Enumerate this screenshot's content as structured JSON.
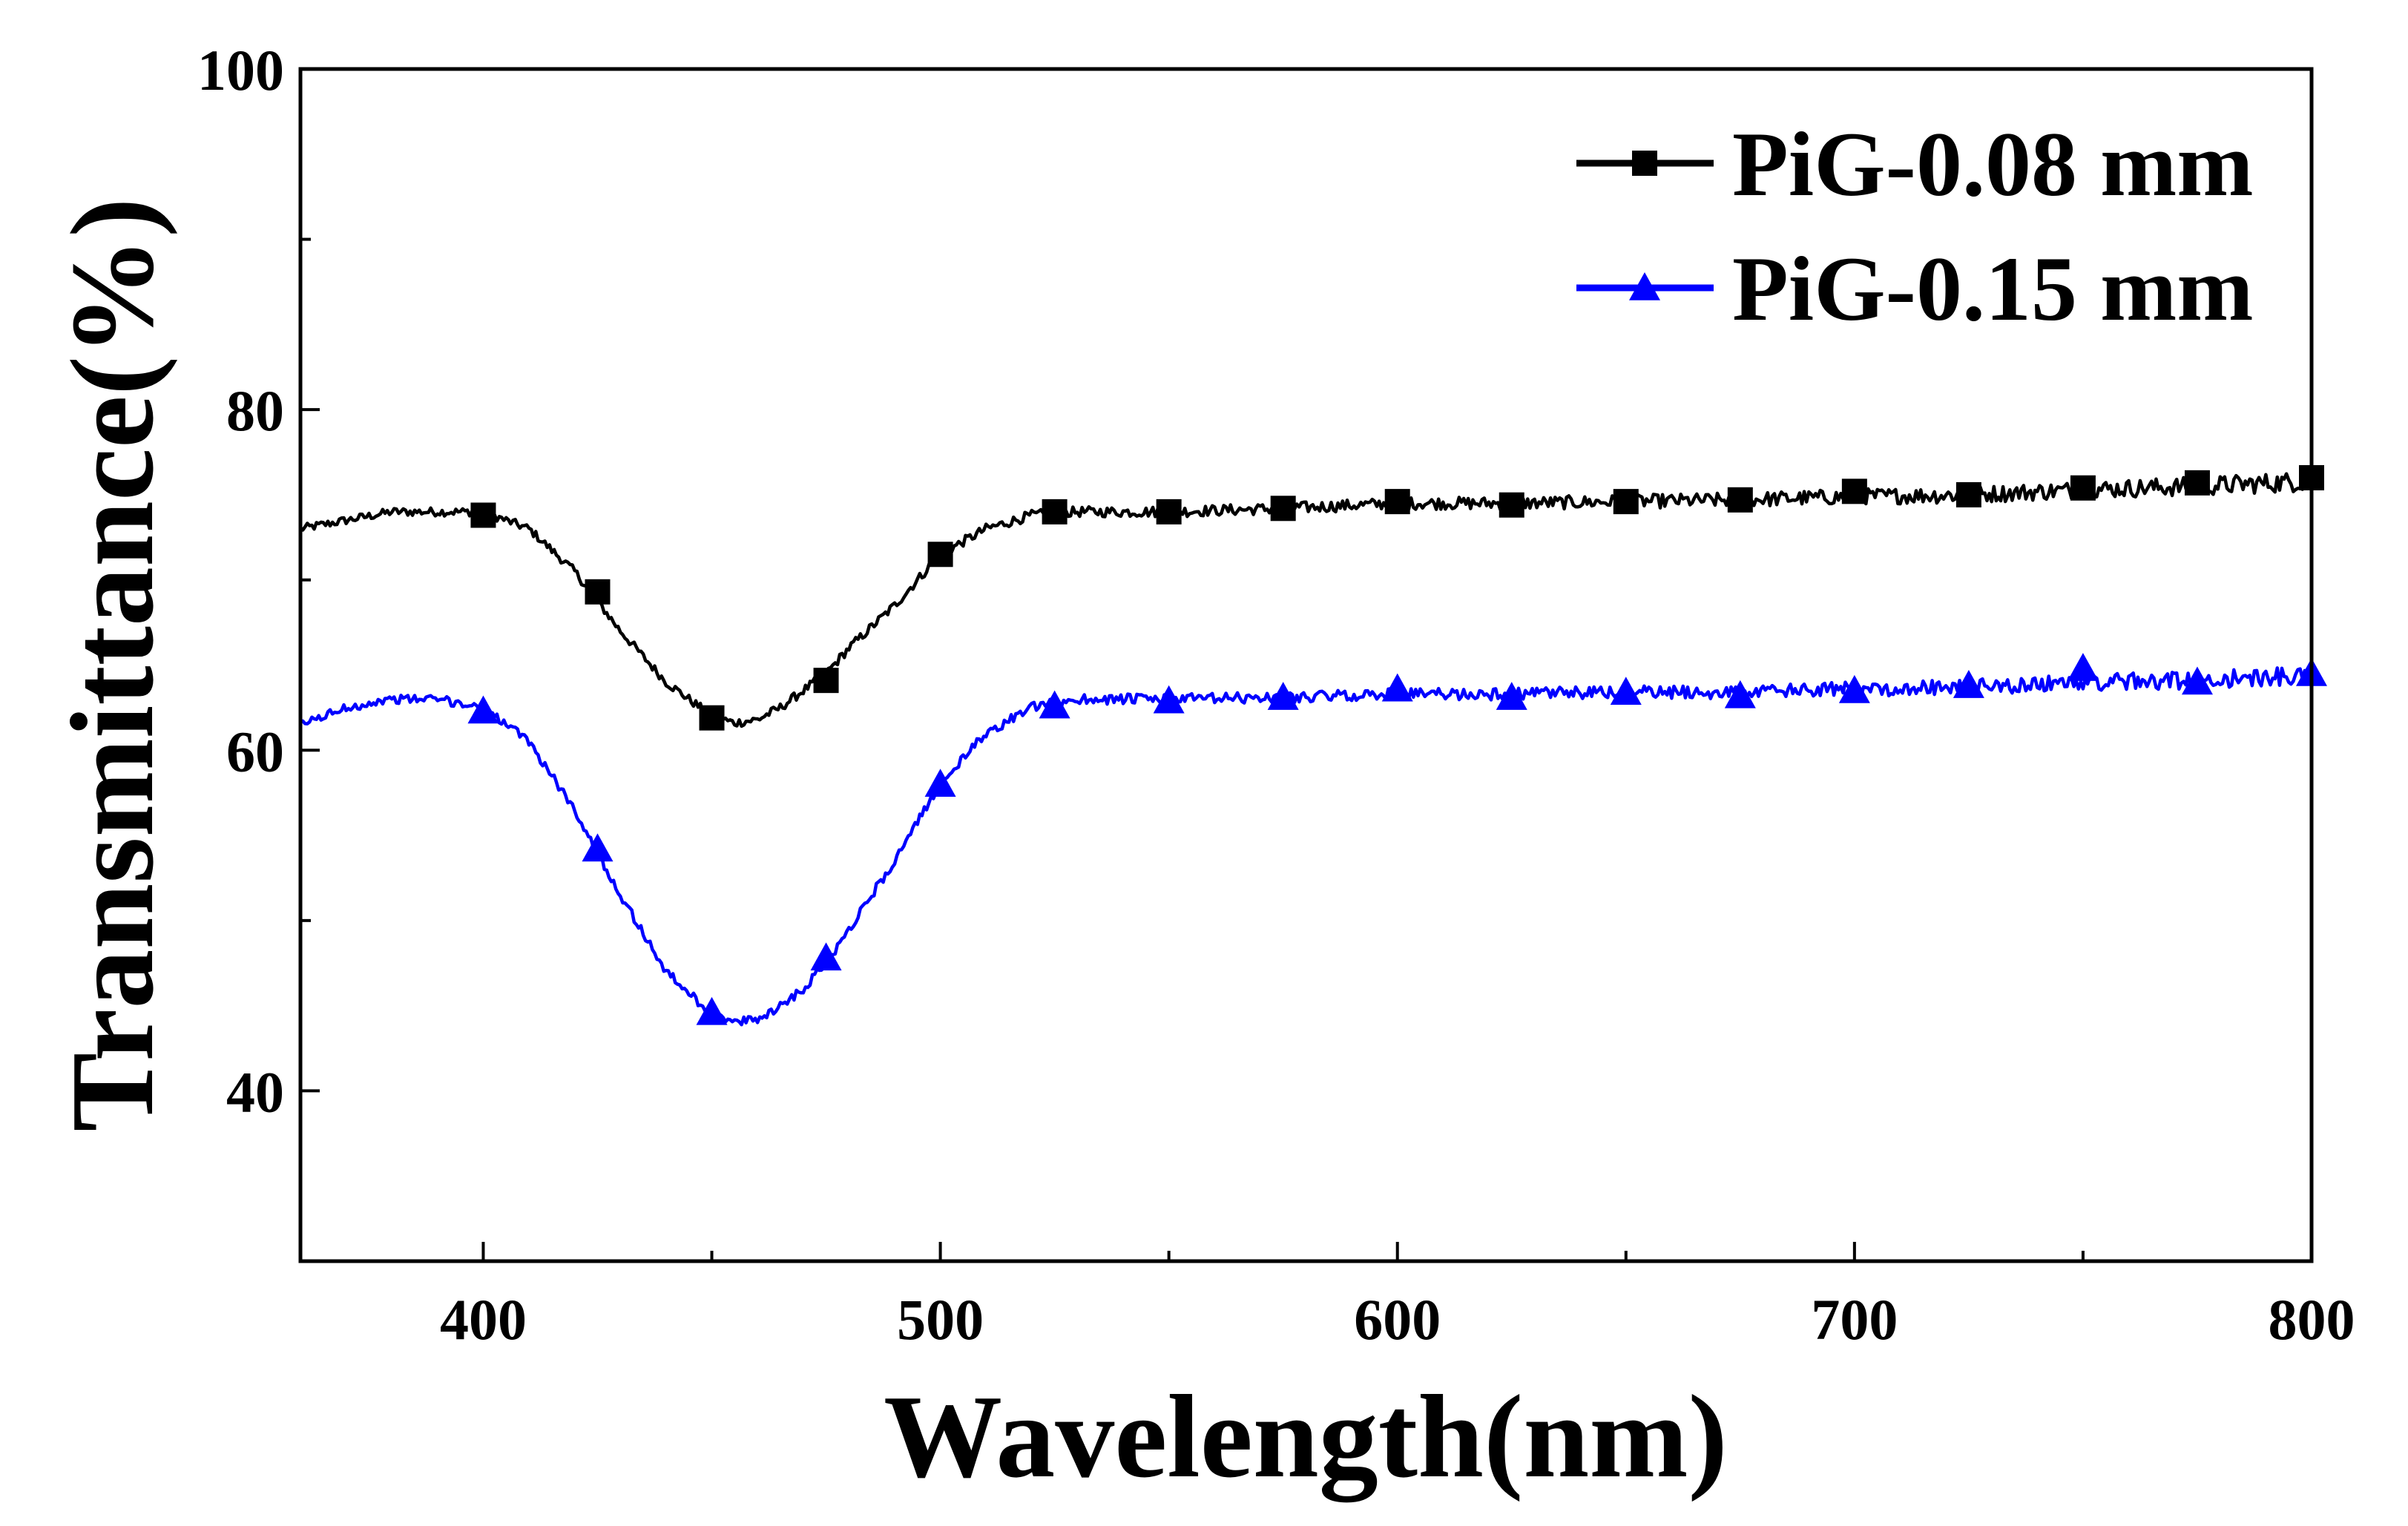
{
  "chart_data": {
    "type": "line",
    "title": "",
    "xlabel": "Wavelength(nm)",
    "ylabel": "Transmittance(%)",
    "xlim": [
      360,
      800
    ],
    "ylim": [
      30,
      100
    ],
    "xticks": [
      400,
      500,
      600,
      700,
      800
    ],
    "yticks": [
      40,
      60,
      80,
      100
    ],
    "xtick_labels": [
      "400",
      "500",
      "600",
      "700",
      "800"
    ],
    "ytick_labels": [
      "40",
      "60",
      "80",
      "100"
    ],
    "grid": false,
    "legend_position": "top-right",
    "series": [
      {
        "name": "PiG-0.08 mm",
        "color": "#000000",
        "marker": "square",
        "noise": [
          0.5,
          1.2
        ],
        "x": [
          360,
          370,
          380,
          390,
          400,
          410,
          420,
          430,
          440,
          450,
          455,
          460,
          465,
          470,
          475,
          480,
          490,
          500,
          510,
          520,
          530,
          550,
          575,
          600,
          625,
          650,
          675,
          700,
          725,
          750,
          775,
          800
        ],
        "y": [
          73.0,
          73.5,
          74.0,
          74.0,
          74.0,
          73.0,
          70.5,
          67.0,
          64.0,
          62.0,
          61.6,
          61.8,
          62.5,
          63.5,
          64.5,
          66.0,
          68.5,
          71.5,
          73.0,
          73.8,
          74.0,
          74.0,
          74.2,
          74.5,
          74.5,
          74.6,
          74.7,
          74.9,
          75.0,
          75.3,
          75.5,
          75.8
        ],
        "marker_x": [
          400,
          425,
          450,
          475,
          500,
          525,
          550,
          575,
          600,
          625,
          650,
          675,
          700,
          725,
          750,
          775,
          800
        ],
        "marker_y": [
          73.8,
          69.3,
          61.9,
          64.1,
          71.5,
          74.0,
          74.0,
          74.2,
          74.6,
          74.4,
          74.6,
          74.7,
          75.2,
          75.0,
          75.4,
          75.7,
          76.0
        ]
      },
      {
        "name": "PiG-0.15 mm",
        "color": "#0000ff",
        "marker": "triangle",
        "noise": [
          0.5,
          1.1
        ],
        "x": [
          360,
          370,
          380,
          390,
          400,
          410,
          420,
          430,
          440,
          450,
          455,
          460,
          465,
          470,
          475,
          480,
          490,
          500,
          510,
          520,
          530,
          550,
          575,
          600,
          625,
          650,
          675,
          700,
          725,
          750,
          775,
          800
        ],
        "y": [
          61.5,
          62.5,
          63.0,
          63.0,
          62.5,
          60.5,
          56.5,
          51.5,
          47.0,
          44.5,
          44.0,
          44.2,
          45.0,
          46.0,
          47.5,
          49.5,
          53.5,
          58.0,
          61.0,
          62.5,
          63.0,
          63.0,
          63.1,
          63.3,
          63.3,
          63.4,
          63.4,
          63.6,
          63.7,
          64.0,
          64.1,
          64.4
        ],
        "marker_x": [
          400,
          425,
          450,
          475,
          500,
          525,
          550,
          575,
          600,
          625,
          650,
          675,
          700,
          725,
          750,
          775,
          800
        ],
        "marker_y": [
          62.3,
          54.2,
          44.6,
          47.8,
          58.0,
          62.6,
          62.9,
          63.1,
          63.6,
          63.1,
          63.4,
          63.2,
          63.5,
          63.8,
          64.8,
          64.0,
          64.5
        ]
      }
    ]
  }
}
